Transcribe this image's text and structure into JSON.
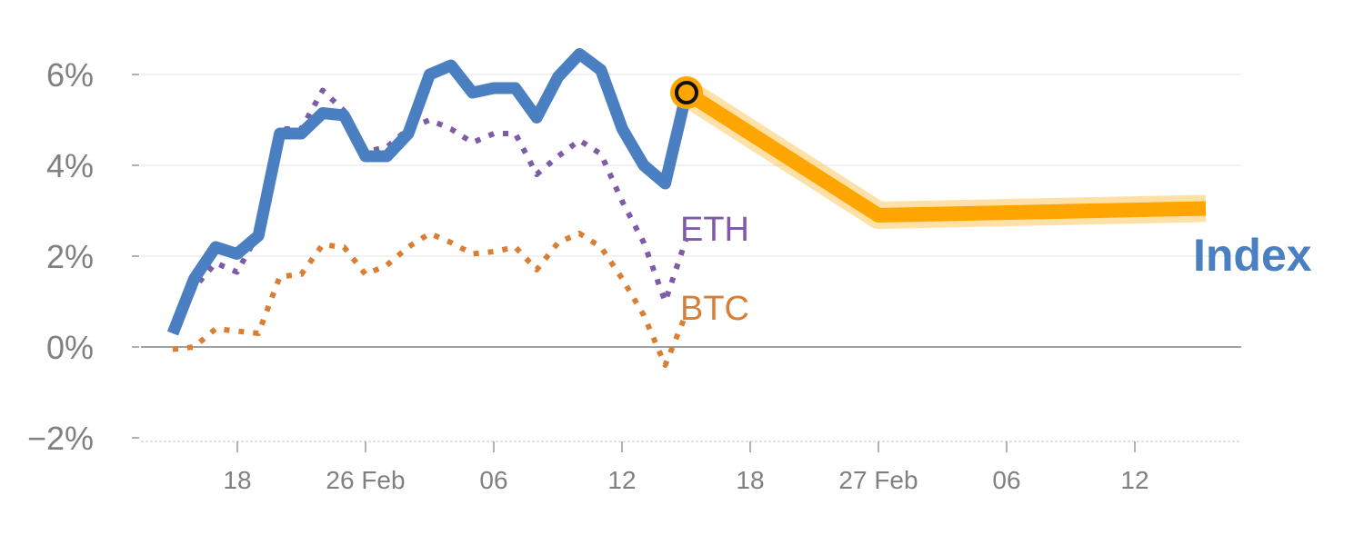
{
  "chart_data": {
    "type": "line",
    "ylim": [
      -2,
      7
    ],
    "y_ticks": [
      {
        "value": 6,
        "label": "6%"
      },
      {
        "value": 4,
        "label": "4%"
      },
      {
        "value": 2,
        "label": "2%"
      },
      {
        "value": 0,
        "label": "0%"
      },
      {
        "value": -2,
        "label": "−2%"
      }
    ],
    "x_ticks": [
      "18",
      "26 Feb",
      "06",
      "12",
      "18",
      "27 Feb",
      "06",
      "12"
    ],
    "grid": true,
    "colors": {
      "index": "#4a7fc1",
      "eth": "#7e5ba6",
      "btc": "#d97e32",
      "forecast": "#ffa500",
      "grid": "#e6e6e6",
      "zero_line": "#808080",
      "tick_text": "#808080"
    },
    "series": [
      {
        "name": "Index",
        "style": "solid",
        "values": [
          0.3,
          1.5,
          2.2,
          2.05,
          2.45,
          4.7,
          4.7,
          5.15,
          5.1,
          4.2,
          4.2,
          4.7,
          6.0,
          6.2,
          5.6,
          5.7,
          5.7,
          5.05,
          5.95,
          6.45,
          6.1,
          4.8,
          4.0,
          3.6,
          5.6
        ]
      },
      {
        "name": "ETH",
        "style": "dotted",
        "values": [
          0.3,
          1.3,
          1.85,
          1.65,
          2.5,
          4.8,
          4.8,
          5.65,
          5.2,
          4.3,
          4.4,
          4.8,
          5.0,
          4.8,
          4.5,
          4.7,
          4.7,
          3.8,
          4.2,
          4.55,
          4.25,
          3.2,
          2.3,
          1.0,
          2.4
        ]
      },
      {
        "name": "BTC",
        "style": "dotted",
        "values": [
          -0.05,
          0.0,
          0.4,
          0.35,
          0.3,
          1.55,
          1.6,
          2.25,
          2.2,
          1.6,
          1.8,
          2.2,
          2.5,
          2.3,
          2.05,
          2.1,
          2.2,
          1.7,
          2.3,
          2.5,
          2.2,
          1.5,
          0.7,
          -0.4,
          0.75
        ]
      },
      {
        "name": "forecast",
        "style": "thick",
        "values": [
          5.6,
          2.9,
          3.05
        ]
      }
    ],
    "labels": {
      "index": "Index",
      "eth": "ETH",
      "btc": "BTC"
    }
  }
}
